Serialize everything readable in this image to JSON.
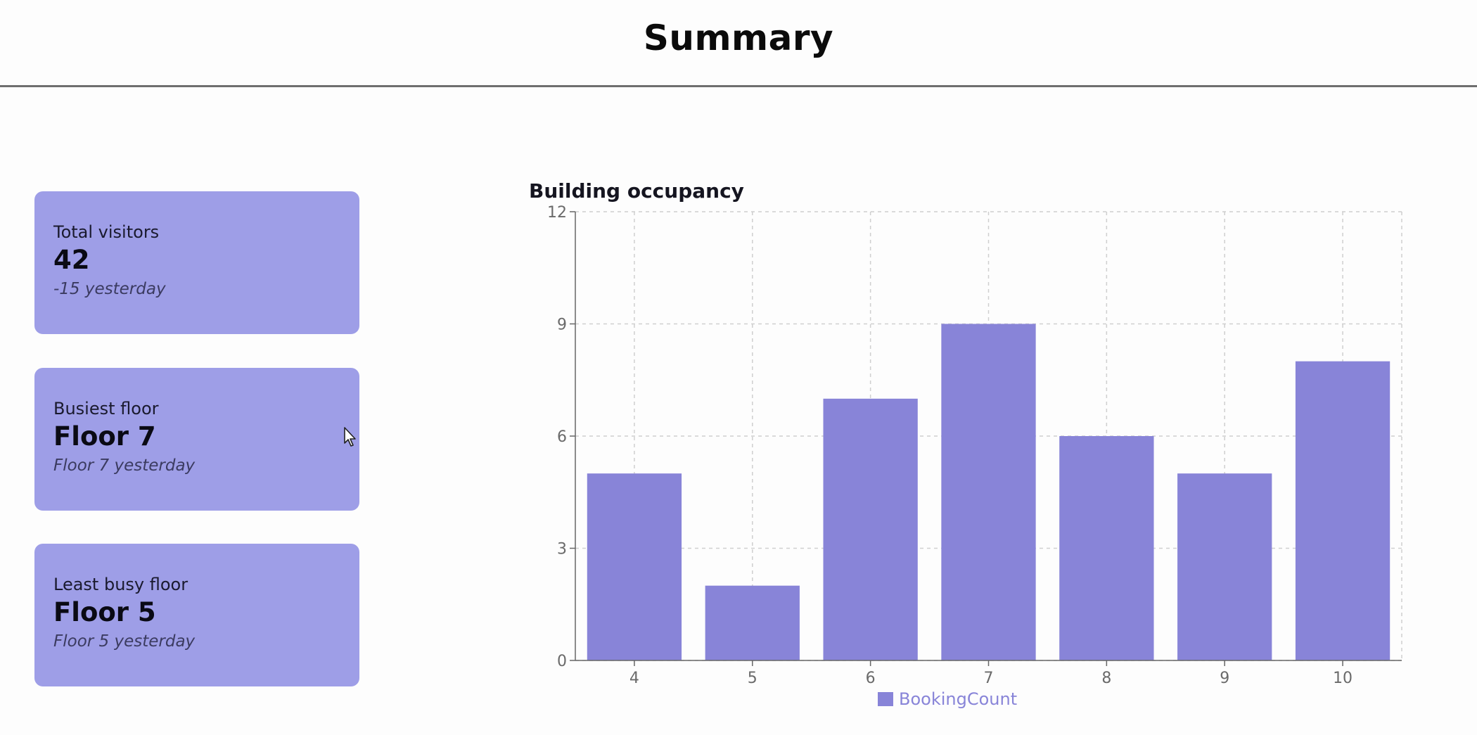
{
  "header": {
    "title": "Summary"
  },
  "cards": [
    {
      "label": "Total visitors",
      "value": "42",
      "sub": "-15 yesterday"
    },
    {
      "label": "Busiest floor",
      "value": "Floor 7",
      "sub": "Floor 7 yesterday"
    },
    {
      "label": "Least busy floor",
      "value": "Floor 5",
      "sub": "Floor 5 yesterday"
    }
  ],
  "colors": {
    "card_bg": "#9e9ee7",
    "bar": "#8884d8"
  },
  "chart_data": {
    "type": "bar",
    "title": "Building occupancy",
    "categories": [
      "4",
      "5",
      "6",
      "7",
      "8",
      "9",
      "10"
    ],
    "series": [
      {
        "name": "BookingCount",
        "values": [
          5,
          2,
          7,
          9,
          6,
          5,
          8
        ]
      }
    ],
    "ylim": [
      0,
      12
    ],
    "yticks": [
      0,
      3,
      6,
      9,
      12
    ],
    "grid": true,
    "legend": "bottom-center",
    "xlabel": "",
    "ylabel": ""
  }
}
